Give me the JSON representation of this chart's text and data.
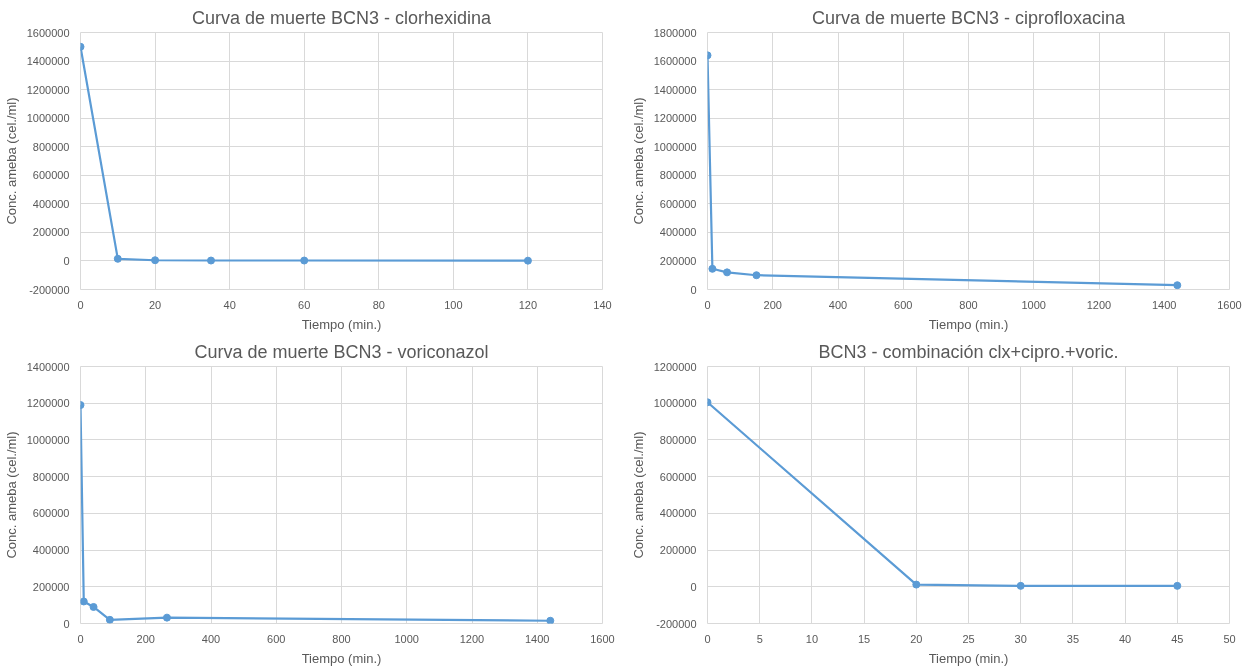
{
  "chart_data": [
    {
      "type": "line",
      "title": "Curva de muerte BCN3 - clorhexidina",
      "xlabel": "Tiempo (min.)",
      "ylabel": "Conc. ameba (cel./ml)",
      "marker": "circle",
      "grid": true,
      "x": [
        0,
        10,
        20,
        35,
        60,
        120
      ],
      "xlim": [
        0,
        140
      ],
      "xticks": [
        0,
        20,
        40,
        60,
        80,
        100,
        120,
        140
      ],
      "ylim": [
        -200000,
        1600000
      ],
      "yticks": [
        -200000,
        0,
        200000,
        400000,
        600000,
        800000,
        1000000,
        1200000,
        1400000,
        1600000
      ],
      "series": [
        {
          "color": "#5b9bd5",
          "values": [
            1500000,
            15000,
            5000,
            3000,
            3000,
            2000
          ]
        }
      ]
    },
    {
      "type": "line",
      "title": "Curva de muerte BCN3 - ciprofloxacina",
      "xlabel": "Tiempo (min.)",
      "ylabel": "Conc. ameba (cel./ml)",
      "marker": "circle",
      "grid": true,
      "x": [
        0,
        15,
        60,
        150,
        1440
      ],
      "xlim": [
        0,
        1600
      ],
      "xticks": [
        0,
        200,
        400,
        600,
        800,
        1000,
        1200,
        1400,
        1600
      ],
      "ylim": [
        0,
        1800000
      ],
      "yticks": [
        0,
        200000,
        400000,
        600000,
        800000,
        1000000,
        1200000,
        1400000,
        1600000,
        1800000
      ],
      "series": [
        {
          "color": "#5b9bd5",
          "values": [
            1640000,
            145000,
            120000,
            100000,
            30000
          ]
        }
      ]
    },
    {
      "type": "line",
      "title": "Curva de muerte BCN3 - voriconazol",
      "xlabel": "Tiempo (min.)",
      "ylabel": "Conc. ameba (cel./ml)",
      "marker": "circle",
      "grid": true,
      "x": [
        0,
        10,
        40,
        90,
        265,
        1440
      ],
      "xlim": [
        0,
        1600
      ],
      "xticks": [
        0,
        200,
        400,
        600,
        800,
        1000,
        1200,
        1400,
        1600
      ],
      "ylim": [
        0,
        1400000
      ],
      "yticks": [
        0,
        200000,
        400000,
        600000,
        800000,
        1000000,
        1200000,
        1400000
      ],
      "series": [
        {
          "color": "#5b9bd5",
          "values": [
            1190000,
            120000,
            90000,
            20000,
            32000,
            15000
          ]
        }
      ]
    },
    {
      "type": "line",
      "title": "BCN3 - combinación clx+cipro.+voric.",
      "xlabel": "Tiempo (min.)",
      "ylabel": "Conc. ameba (cel./ml)",
      "marker": "circle",
      "grid": true,
      "x": [
        0,
        20,
        30,
        45
      ],
      "xlim": [
        0,
        50
      ],
      "xticks": [
        0,
        5,
        10,
        15,
        20,
        25,
        30,
        35,
        40,
        45,
        50
      ],
      "ylim": [
        -200000,
        1200000
      ],
      "yticks": [
        -200000,
        0,
        200000,
        400000,
        600000,
        800000,
        1000000,
        1200000
      ],
      "series": [
        {
          "color": "#5b9bd5",
          "values": [
            1005000,
            12000,
            5000,
            5000
          ]
        }
      ]
    }
  ]
}
